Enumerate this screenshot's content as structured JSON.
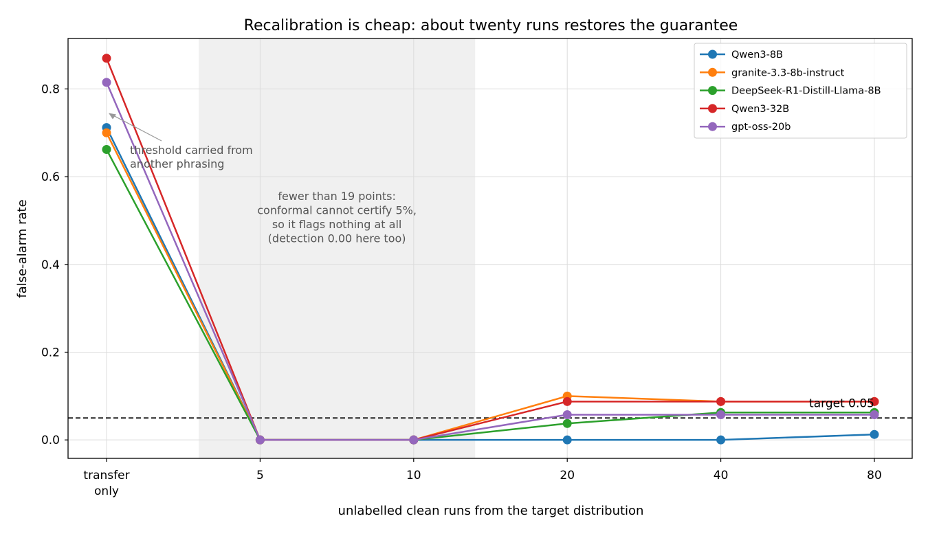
{
  "chart_data": {
    "type": "line",
    "title": "Recalibration is cheap: about twenty runs restores the guarantee",
    "xlabel": "unlabelled clean runs from the target distribution",
    "ylabel": "false-alarm rate",
    "categories": [
      "transfer\nonly",
      "5",
      "10",
      "20",
      "40",
      "80"
    ],
    "ylim": [
      -0.042,
      0.915
    ],
    "yticks": [
      "0.0",
      "0.2",
      "0.4",
      "0.6",
      "0.8"
    ],
    "ytick_values": [
      0.0,
      0.2,
      0.4,
      0.6,
      0.8
    ],
    "grid": true,
    "legend_position": "top-right",
    "series": [
      {
        "name": "Qwen3-8B",
        "color": "#1f77b4",
        "values": [
          0.712,
          0.0,
          0.0,
          0.0,
          0.0,
          0.0125
        ]
      },
      {
        "name": "granite-3.3-8b-instruct",
        "color": "#ff7f0e",
        "values": [
          0.7,
          0.0,
          0.0,
          0.1,
          0.0875,
          0.0875
        ]
      },
      {
        "name": "DeepSeek-R1-Distill-Llama-8B",
        "color": "#2ca02c",
        "values": [
          0.662,
          0.0,
          0.0,
          0.0375,
          0.0625,
          0.0625
        ]
      },
      {
        "name": "Qwen3-32B",
        "color": "#d62728",
        "values": [
          0.87,
          0.0,
          0.0,
          0.0875,
          0.0875,
          0.0875
        ]
      },
      {
        "name": "gpt-oss-20b",
        "color": "#9467bd",
        "values": [
          0.815,
          0.0,
          0.0,
          0.0575,
          0.0575,
          0.0575
        ]
      }
    ],
    "reference_line": {
      "value": 0.05,
      "label": "target 0.05",
      "style": "dashed",
      "color": "#222222"
    },
    "shaded_region": {
      "from_category_offset": 0.6,
      "to_category_offset": 2.4,
      "color": "#f0f0f0"
    },
    "annotations": [
      {
        "id": "threshold",
        "lines": [
          "threshold carried from",
          "another phrasing"
        ],
        "points_to_category": 0,
        "points_to_value": 0.745
      },
      {
        "id": "few-points",
        "lines": [
          "fewer than 19 points:",
          "conformal cannot certify 5%,",
          "so it flags nothing at all",
          "(detection 0.00 here too)"
        ]
      }
    ]
  }
}
